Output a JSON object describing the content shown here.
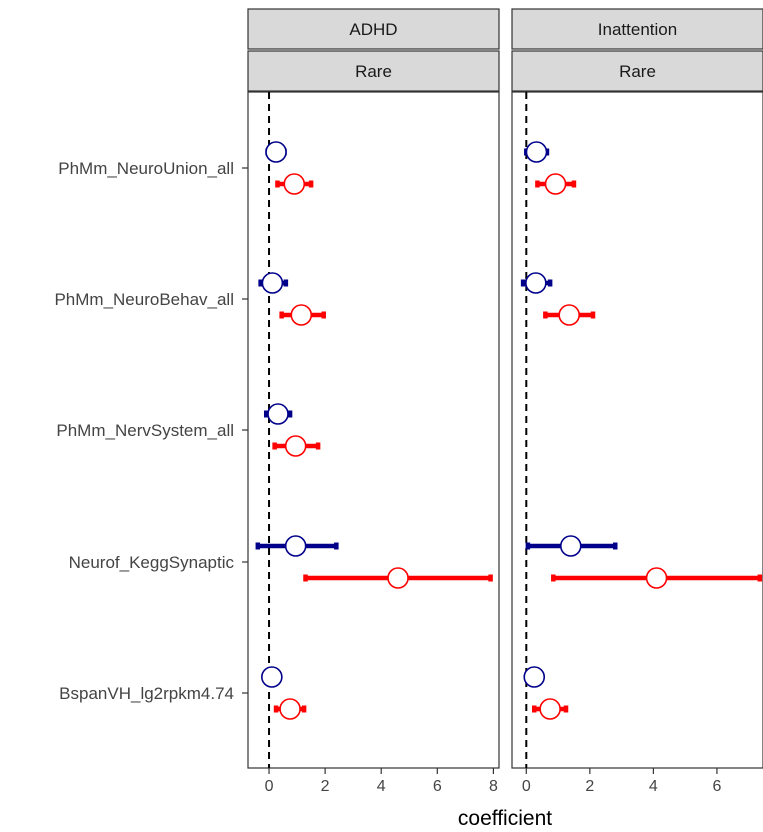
{
  "chart_data": {
    "type": "forest",
    "xlabel": "coefficient",
    "reference_line_x": 0,
    "facet_strip_bottom": "Rare",
    "categories": [
      "PhMm_NeuroUnion_all",
      "PhMm_NeuroBehav_all",
      "PhMm_NervSystem_all",
      "Neurof_KeggSynaptic",
      "BspanVH_lg2rpkm4.74"
    ],
    "series_colors": [
      "#00008b",
      "#ff0000"
    ],
    "panels": [
      {
        "title": "ADHD",
        "subtitle": "Rare",
        "xlim": [
          -0.75,
          8.2
        ],
        "xticks": [
          0,
          2,
          4,
          6,
          8
        ],
        "xtick_labels": [
          "0",
          "2",
          "4",
          "6",
          "8"
        ],
        "points": [
          {
            "category": "PhMm_NeuroUnion_all",
            "series": 0,
            "est": 0.25,
            "lo": -0.05,
            "hi": 0.55
          },
          {
            "category": "PhMm_NeuroUnion_all",
            "series": 1,
            "est": 0.9,
            "lo": 0.3,
            "hi": 1.5
          },
          {
            "category": "PhMm_NeuroBehav_all",
            "series": 0,
            "est": 0.12,
            "lo": -0.3,
            "hi": 0.6
          },
          {
            "category": "PhMm_NeuroBehav_all",
            "series": 1,
            "est": 1.15,
            "lo": 0.45,
            "hi": 1.95
          },
          {
            "category": "PhMm_NervSystem_all",
            "series": 0,
            "est": 0.32,
            "lo": -0.1,
            "hi": 0.75
          },
          {
            "category": "PhMm_NervSystem_all",
            "series": 1,
            "est": 0.95,
            "lo": 0.2,
            "hi": 1.75
          },
          {
            "category": "Neurof_KeggSynaptic",
            "series": 0,
            "est": 0.95,
            "lo": -0.4,
            "hi": 2.4
          },
          {
            "category": "Neurof_KeggSynaptic",
            "series": 1,
            "est": 4.6,
            "lo": 1.3,
            "hi": 7.9
          },
          {
            "category": "BspanVH_lg2rpkm4.74",
            "series": 0,
            "est": 0.1,
            "lo": -0.05,
            "hi": 0.3
          },
          {
            "category": "BspanVH_lg2rpkm4.74",
            "series": 1,
            "est": 0.75,
            "lo": 0.25,
            "hi": 1.25
          }
        ]
      },
      {
        "title": "Inattention",
        "subtitle": "Rare",
        "xlim": [
          -0.45,
          7.45
        ],
        "xticks": [
          0,
          2,
          4,
          6
        ],
        "xtick_labels": [
          "0",
          "2",
          "4",
          "6"
        ],
        "points": [
          {
            "category": "PhMm_NeuroUnion_all",
            "series": 0,
            "est": 0.32,
            "lo": 0.0,
            "hi": 0.65
          },
          {
            "category": "PhMm_NeuroUnion_all",
            "series": 1,
            "est": 0.92,
            "lo": 0.35,
            "hi": 1.5
          },
          {
            "category": "PhMm_NeuroBehav_all",
            "series": 0,
            "est": 0.3,
            "lo": -0.1,
            "hi": 0.75
          },
          {
            "category": "PhMm_NeuroBehav_all",
            "series": 1,
            "est": 1.35,
            "lo": 0.6,
            "hi": 2.1
          },
          {
            "category": "Neurof_KeggSynaptic",
            "series": 0,
            "est": 1.4,
            "lo": 0.05,
            "hi": 2.8
          },
          {
            "category": "Neurof_KeggSynaptic",
            "series": 1,
            "est": 4.1,
            "lo": 0.85,
            "hi": 7.35
          },
          {
            "category": "BspanVH_lg2rpkm4.74",
            "series": 0,
            "est": 0.25,
            "lo": 0.0,
            "hi": 0.5
          },
          {
            "category": "BspanVH_lg2rpkm4.74",
            "series": 1,
            "est": 0.75,
            "lo": 0.25,
            "hi": 1.25
          }
        ]
      }
    ]
  }
}
